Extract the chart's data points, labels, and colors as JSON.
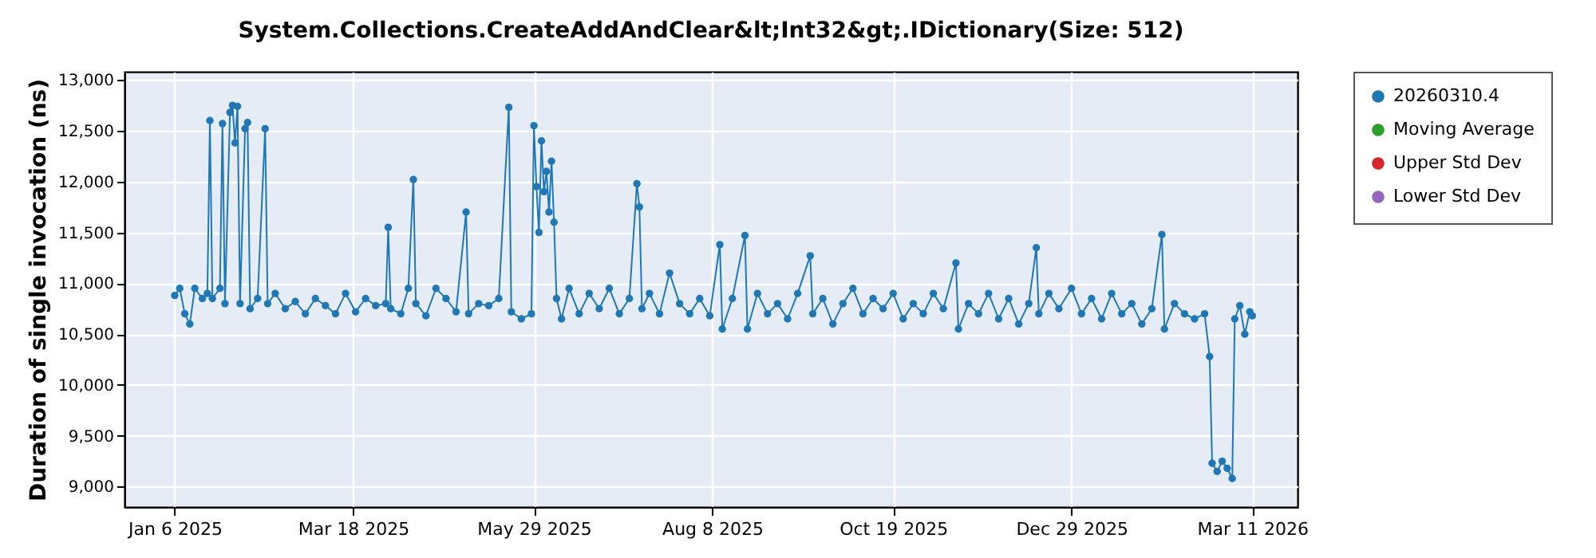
{
  "chart_data": {
    "type": "line",
    "title": "System.Collections.CreateAddAndClear&lt;Int32&gt;.IDictionary(Size: 512)",
    "ylabel": "Duration of single invocation (ns)",
    "x": [
      "2025-01-06",
      "2025-01-08",
      "2025-01-10",
      "2025-01-12",
      "2025-01-14",
      "2025-01-17",
      "2025-01-19",
      "2025-01-20",
      "2025-01-21",
      "2025-01-24",
      "2025-01-25",
      "2025-01-26",
      "2025-01-28",
      "2025-01-29",
      "2025-01-30",
      "2025-01-31",
      "2025-02-01",
      "2025-02-03",
      "2025-02-04",
      "2025-02-05",
      "2025-02-08",
      "2025-02-11",
      "2025-02-12",
      "2025-02-15",
      "2025-02-19",
      "2025-02-23",
      "2025-02-27",
      "2025-03-03",
      "2025-03-07",
      "2025-03-11",
      "2025-03-15",
      "2025-03-19",
      "2025-03-23",
      "2025-03-27",
      "2025-03-31",
      "2025-04-01",
      "2025-04-02",
      "2025-04-06",
      "2025-04-09",
      "2025-04-11",
      "2025-04-12",
      "2025-04-16",
      "2025-04-20",
      "2025-04-24",
      "2025-04-28",
      "2025-05-02",
      "2025-05-03",
      "2025-05-07",
      "2025-05-11",
      "2025-05-15",
      "2025-05-19",
      "2025-05-20",
      "2025-05-24",
      "2025-05-28",
      "2025-05-29",
      "2025-05-30",
      "2025-05-31",
      "2025-06-01",
      "2025-06-02",
      "2025-06-03",
      "2025-06-04",
      "2025-06-05",
      "2025-06-06",
      "2025-06-07",
      "2025-06-09",
      "2025-06-12",
      "2025-06-16",
      "2025-06-20",
      "2025-06-24",
      "2025-06-28",
      "2025-07-02",
      "2025-07-06",
      "2025-07-09",
      "2025-07-10",
      "2025-07-11",
      "2025-07-14",
      "2025-07-18",
      "2025-07-22",
      "2025-07-26",
      "2025-07-30",
      "2025-08-03",
      "2025-08-07",
      "2025-08-11",
      "2025-08-12",
      "2025-08-16",
      "2025-08-21",
      "2025-08-22",
      "2025-08-26",
      "2025-08-30",
      "2025-09-03",
      "2025-09-07",
      "2025-09-11",
      "2025-09-16",
      "2025-09-17",
      "2025-09-21",
      "2025-09-25",
      "2025-09-29",
      "2025-10-03",
      "2025-10-07",
      "2025-10-11",
      "2025-10-15",
      "2025-10-19",
      "2025-10-23",
      "2025-10-27",
      "2025-10-31",
      "2025-11-04",
      "2025-11-08",
      "2025-11-13",
      "2025-11-14",
      "2025-11-18",
      "2025-11-22",
      "2025-11-26",
      "2025-11-30",
      "2025-12-04",
      "2025-12-08",
      "2025-12-12",
      "2025-12-15",
      "2025-12-16",
      "2025-12-20",
      "2025-12-24",
      "2025-12-29",
      "2026-01-02",
      "2026-01-06",
      "2026-01-10",
      "2026-01-14",
      "2026-01-18",
      "2026-01-22",
      "2026-01-26",
      "2026-01-30",
      "2026-02-03",
      "2026-02-04",
      "2026-02-08",
      "2026-02-12",
      "2026-02-16",
      "2026-02-20",
      "2026-02-22",
      "2026-02-23",
      "2026-02-25",
      "2026-02-27",
      "2026-03-01",
      "2026-03-03",
      "2026-03-04",
      "2026-03-06",
      "2026-03-08",
      "2026-03-10",
      "2026-03-11"
    ],
    "series": [
      {
        "name": "20260310.4",
        "color": "#1f77b4",
        "values": [
          10880,
          10950,
          10700,
          10600,
          10950,
          10850,
          10900,
          12600,
          10850,
          10950,
          12570,
          10800,
          12680,
          12750,
          12380,
          12740,
          10800,
          12520,
          12580,
          10750,
          10850,
          12520,
          10800,
          10900,
          10750,
          10820,
          10700,
          10850,
          10780,
          10700,
          10900,
          10720,
          10850,
          10780,
          10800,
          11550,
          10750,
          10700,
          10950,
          12020,
          10800,
          10680,
          10950,
          10850,
          10720,
          11700,
          10700,
          10800,
          10780,
          10850,
          12730,
          10720,
          10650,
          10700,
          12550,
          11950,
          11500,
          12400,
          11900,
          12100,
          11700,
          12200,
          11600,
          10850,
          10650,
          10950,
          10700,
          10900,
          10750,
          10950,
          10700,
          10850,
          11980,
          11750,
          10750,
          10900,
          10700,
          11100,
          10800,
          10700,
          10850,
          10680,
          11380,
          10550,
          10850,
          11470,
          10550,
          10900,
          10700,
          10800,
          10650,
          10900,
          11270,
          10700,
          10850,
          10600,
          10800,
          10950,
          10700,
          10850,
          10750,
          10900,
          10650,
          10800,
          10700,
          10900,
          10750,
          11200,
          10550,
          10800,
          10700,
          10900,
          10650,
          10850,
          10600,
          10800,
          11350,
          10700,
          10900,
          10750,
          10950,
          10700,
          10850,
          10650,
          10900,
          10700,
          10800,
          10600,
          10750,
          11480,
          10550,
          10800,
          10700,
          10650,
          10700,
          10280,
          9230,
          9150,
          9250,
          9180,
          9080,
          10650,
          10780,
          10500,
          10720,
          10680
        ]
      },
      {
        "name": "Moving Average",
        "color": "#2ca02c",
        "values": [
          null,
          null,
          null,
          null,
          null,
          null,
          null,
          null,
          null,
          null,
          null,
          null,
          null,
          null,
          null,
          null,
          null,
          null,
          null,
          null,
          null,
          null,
          null,
          null,
          null,
          null,
          null,
          null,
          null,
          null,
          null,
          null,
          null,
          null,
          null,
          null,
          null,
          null,
          null,
          null,
          null,
          null,
          null,
          null,
          null,
          null,
          null,
          null,
          null,
          null,
          null,
          null,
          null,
          null,
          null,
          null,
          null,
          null,
          null,
          null,
          null,
          null,
          null,
          null,
          null,
          null,
          null,
          null,
          null,
          null,
          null,
          null,
          null,
          null,
          null,
          null,
          null,
          null,
          null,
          null,
          null,
          null,
          null,
          null,
          null,
          null,
          null,
          null,
          null,
          null,
          null,
          null,
          null,
          null,
          null,
          null,
          null,
          null,
          null,
          null,
          null,
          null,
          null,
          null,
          null,
          null,
          null,
          null,
          null,
          null,
          null,
          null,
          null,
          null,
          null,
          null,
          null,
          null,
          null,
          null,
          null,
          null,
          null,
          null,
          null,
          null,
          null,
          null,
          null,
          null,
          null,
          null,
          null,
          null,
          null,
          null,
          null,
          null,
          null,
          null,
          null,
          null,
          null,
          null,
          null,
          null
        ]
      },
      {
        "name": "Upper Std Dev",
        "color": "#d62728",
        "values": [
          null,
          null,
          null,
          null,
          null,
          null,
          null,
          null,
          null,
          null,
          null,
          null,
          null,
          null,
          null,
          null,
          null,
          null,
          null,
          null,
          null,
          null,
          null,
          null,
          null,
          null,
          null,
          null,
          null,
          null,
          null,
          null,
          null,
          null,
          null,
          null,
          null,
          null,
          null,
          null,
          null,
          null,
          null,
          null,
          null,
          null,
          null,
          null,
          null,
          null,
          null,
          null,
          null,
          null,
          null,
          null,
          null,
          null,
          null,
          null,
          null,
          null,
          null,
          null,
          null,
          null,
          null,
          null,
          null,
          null,
          null,
          null,
          null,
          null,
          null,
          null,
          null,
          null,
          null,
          null,
          null,
          null,
          null,
          null,
          null,
          null,
          null,
          null,
          null,
          null,
          null,
          null,
          null,
          null,
          null,
          null,
          null,
          null,
          null,
          null,
          null,
          null,
          null,
          null,
          null,
          null,
          null,
          null,
          null,
          null,
          null,
          null,
          null,
          null,
          null,
          null,
          null,
          null,
          null,
          null,
          null,
          null,
          null,
          null,
          null,
          null,
          null,
          null,
          null,
          null,
          null,
          null,
          null,
          null,
          null,
          null,
          null,
          null,
          null,
          null,
          null,
          null,
          null,
          null,
          null,
          null
        ]
      },
      {
        "name": "Lower Std Dev",
        "color": "#9467bd",
        "values": [
          null,
          null,
          null,
          null,
          null,
          null,
          null,
          null,
          null,
          null,
          null,
          null,
          null,
          null,
          null,
          null,
          null,
          null,
          null,
          null,
          null,
          null,
          null,
          null,
          null,
          null,
          null,
          null,
          null,
          null,
          null,
          null,
          null,
          null,
          null,
          null,
          null,
          null,
          null,
          null,
          null,
          null,
          null,
          null,
          null,
          null,
          null,
          null,
          null,
          null,
          null,
          null,
          null,
          null,
          null,
          null,
          null,
          null,
          null,
          null,
          null,
          null,
          null,
          null,
          null,
          null,
          null,
          null,
          null,
          null,
          null,
          null,
          null,
          null,
          null,
          null,
          null,
          null,
          null,
          null,
          null,
          null,
          null,
          null,
          null,
          null,
          null,
          null,
          null,
          null,
          null,
          null,
          null,
          null,
          null,
          null,
          null,
          null,
          null,
          null,
          null,
          null,
          null,
          null,
          null,
          null,
          null,
          null,
          null,
          null,
          null,
          null,
          null,
          null,
          null,
          null,
          null,
          null,
          null,
          null,
          null,
          null,
          null,
          null,
          null,
          null,
          null,
          null,
          null,
          null,
          null,
          null,
          null,
          null,
          null,
          null,
          null,
          null,
          null,
          null,
          null,
          null,
          null,
          null,
          null,
          null
        ]
      }
    ],
    "xlim": [
      "2024-12-17",
      "2026-03-29"
    ],
    "xticks": [
      {
        "value": "2025-01-06",
        "label": "Jan 6 2025"
      },
      {
        "value": "2025-03-18",
        "label": "Mar 18 2025"
      },
      {
        "value": "2025-05-29",
        "label": "May 29 2025"
      },
      {
        "value": "2025-08-08",
        "label": "Aug 8 2025"
      },
      {
        "value": "2025-10-19",
        "label": "Oct 19 2025"
      },
      {
        "value": "2025-12-29",
        "label": "Dec 29 2025"
      },
      {
        "value": "2026-03-11",
        "label": "Mar 11 2026"
      }
    ],
    "ylim": [
      8800,
      13080
    ],
    "yticks": [
      {
        "value": 9000,
        "label": "9,000"
      },
      {
        "value": 9500,
        "label": "9,500"
      },
      {
        "value": 10000,
        "label": "10,000"
      },
      {
        "value": 10500,
        "label": "10,500"
      },
      {
        "value": 11000,
        "label": "11,000"
      },
      {
        "value": 11500,
        "label": "11,500"
      },
      {
        "value": 12000,
        "label": "12,000"
      },
      {
        "value": 12500,
        "label": "12,500"
      },
      {
        "value": 13000,
        "label": "13,000"
      }
    ],
    "grid": true,
    "legend": "right",
    "marker": "circle",
    "line_style": "solid"
  }
}
